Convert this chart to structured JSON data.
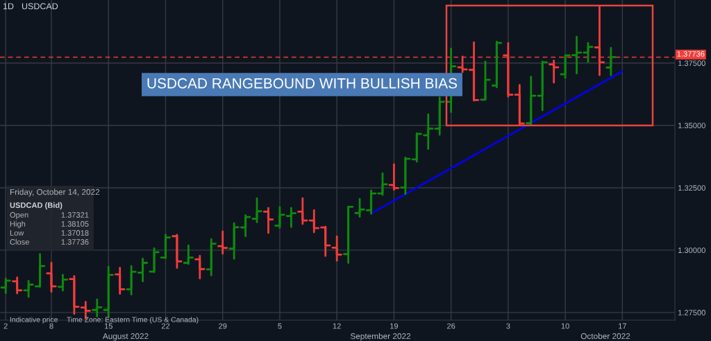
{
  "chart_data": {
    "type": "candlestick",
    "categories": [
      "2",
      null,
      null,
      null,
      "8",
      null,
      null,
      null,
      null,
      "15",
      null,
      null,
      null,
      null,
      "22",
      null,
      null,
      null,
      null,
      "29",
      null,
      null,
      null,
      null,
      "5",
      null,
      null,
      null,
      null,
      "12",
      null,
      null,
      null,
      null,
      "19",
      null,
      null,
      null,
      null,
      "26",
      null,
      null,
      null,
      null,
      "3",
      null,
      null,
      null,
      null,
      "10",
      null,
      null,
      null,
      null,
      "17",
      null,
      null,
      null,
      null
    ],
    "ohlc": [
      [
        1.285,
        1.2886,
        1.2828,
        1.2878
      ],
      [
        1.2875,
        1.289,
        1.2827,
        1.2839
      ],
      [
        1.2839,
        1.2876,
        1.2813,
        1.2862
      ],
      [
        1.2855,
        1.2984,
        1.2853,
        1.2936
      ],
      [
        1.2907,
        1.2949,
        1.2833,
        1.2855
      ],
      [
        1.2853,
        1.2901,
        1.2838,
        1.2882
      ],
      [
        1.2884,
        1.2896,
        1.2745,
        1.2773
      ],
      [
        1.277,
        1.2792,
        1.2725,
        1.2757
      ],
      [
        1.276,
        1.2802,
        1.2734,
        1.2771
      ],
      [
        1.276,
        1.2933,
        1.2734,
        1.2901
      ],
      [
        1.2903,
        1.2929,
        1.2825,
        1.2843
      ],
      [
        1.2843,
        1.2936,
        1.2822,
        1.2913
      ],
      [
        1.291,
        1.2966,
        1.2875,
        1.2949
      ],
      [
        1.2914,
        1.3007,
        1.2912,
        1.2992
      ],
      [
        1.297,
        1.3061,
        1.2968,
        1.3051
      ],
      [
        1.3056,
        1.3061,
        1.2929,
        1.2955
      ],
      [
        1.2949,
        1.3019,
        1.2945,
        1.297
      ],
      [
        1.2963,
        1.2977,
        1.2887,
        1.2924
      ],
      [
        1.2923,
        1.3044,
        1.2899,
        1.3026
      ],
      [
        1.3016,
        1.3075,
        1.2986,
        1.3009
      ],
      [
        1.3006,
        1.3108,
        1.2966,
        1.3092
      ],
      [
        1.3091,
        1.314,
        1.3056,
        1.3133
      ],
      [
        1.3126,
        1.3208,
        1.3112,
        1.3156
      ],
      [
        1.3154,
        1.3169,
        1.3069,
        1.3123
      ],
      [
        1.3098,
        1.3172,
        1.309,
        1.3142
      ],
      [
        1.3137,
        1.3169,
        1.3093,
        1.3148
      ],
      [
        1.3154,
        1.3208,
        1.3105,
        1.3119
      ],
      [
        1.3119,
        1.316,
        1.3072,
        1.3088
      ],
      [
        1.3091,
        1.3094,
        1.2977,
        1.3019
      ],
      [
        1.301,
        1.3055,
        1.2958,
        1.2982
      ],
      [
        1.2984,
        1.3174,
        1.2949,
        1.3174
      ],
      [
        1.3149,
        1.3205,
        1.3134,
        1.3163
      ],
      [
        1.316,
        1.3239,
        1.3146,
        1.3227
      ],
      [
        1.3227,
        1.3308,
        1.3222,
        1.3264
      ],
      [
        1.3261,
        1.3344,
        1.3242,
        1.3249
      ],
      [
        1.3251,
        1.3371,
        1.3225,
        1.3366
      ],
      [
        1.3364,
        1.3468,
        1.3355,
        1.3466
      ],
      [
        1.3461,
        1.3544,
        1.3406,
        1.3487
      ],
      [
        1.3487,
        1.3612,
        1.3463,
        1.3595
      ],
      [
        1.3595,
        1.3808,
        1.3554,
        1.3737
      ],
      [
        1.3733,
        1.3776,
        1.3714,
        1.3725
      ],
      [
        1.3723,
        1.3833,
        1.36,
        1.3602
      ],
      [
        1.3603,
        1.3756,
        1.3603,
        1.3683
      ],
      [
        1.366,
        1.3836,
        1.3653,
        1.3831
      ],
      [
        1.3781,
        1.383,
        1.3616,
        1.3623
      ],
      [
        1.3623,
        1.3662,
        1.3503,
        1.3508
      ],
      [
        1.3509,
        1.3695,
        1.3503,
        1.3619
      ],
      [
        1.3619,
        1.3756,
        1.3561,
        1.3753
      ],
      [
        1.3745,
        1.376,
        1.3672,
        1.3733
      ],
      [
        1.3705,
        1.3781,
        1.3691,
        1.3781
      ],
      [
        1.3782,
        1.3855,
        1.3709,
        1.3792
      ],
      [
        1.3792,
        1.383,
        1.3755,
        1.3815
      ],
      [
        1.3813,
        1.3978,
        1.3702,
        1.3753
      ],
      [
        1.3732,
        1.3811,
        1.3702,
        1.3774
      ],
      null,
      null,
      null,
      null,
      null
    ],
    "colors": [
      "#0f8a0f",
      "#f23d3a",
      "#0f8a0f",
      "#0f8a0f",
      "#f23d3a",
      "#0f8a0f",
      "#f23d3a",
      "#f23d3a",
      "#0f8a0f",
      "#0f8a0f",
      "#f23d3a",
      "#0f8a0f",
      "#0f8a0f",
      "#0f8a0f",
      "#0f8a0f",
      "#f23d3a",
      "#0f8a0f",
      "#f23d3a",
      "#0f8a0f",
      "#f23d3a",
      "#0f8a0f",
      "#0f8a0f",
      "#0f8a0f",
      "#f23d3a",
      "#0f8a0f",
      "#0f8a0f",
      "#f23d3a",
      "#f23d3a",
      "#f23d3a",
      "#f23d3a",
      "#0f8a0f",
      "#0f8a0f",
      "#0f8a0f",
      "#0f8a0f",
      "#f23d3a",
      "#0f8a0f",
      "#0f8a0f",
      "#0f8a0f",
      "#0f8a0f",
      "#0f8a0f",
      "#f23d3a",
      "#f23d3a",
      "#0f8a0f",
      "#0f8a0f",
      "#f23d3a",
      "#f23d3a",
      "#0f8a0f",
      "#0f8a0f",
      "#f23d3a",
      "#0f8a0f",
      "#0f8a0f",
      "#0f8a0f",
      "#f23d3a",
      "#0f8a0f",
      null,
      null,
      null,
      null,
      null
    ],
    "series": [
      {
        "type": "line",
        "color": "#0000ff",
        "values": [
          null,
          null,
          null,
          null,
          null,
          null,
          null,
          null,
          null,
          null,
          null,
          null,
          null,
          null,
          null,
          null,
          null,
          null,
          null,
          null,
          null,
          null,
          null,
          null,
          null,
          null,
          null,
          null,
          null,
          null,
          null,
          null,
          1.3147,
          null,
          null,
          null,
          null,
          null,
          null,
          null,
          null,
          null,
          null,
          null,
          null,
          null,
          null,
          null,
          null,
          null,
          null,
          null,
          null,
          null,
          1.3717,
          null,
          null,
          null,
          null
        ]
      }
    ],
    "ylim": [
      1.2719,
      1.4003
    ],
    "yticks": [
      {
        "value": 1.275,
        "label": "1.27500"
      },
      {
        "value": 1.3,
        "label": "1.30000"
      },
      {
        "value": 1.325,
        "label": "1.32500"
      },
      {
        "value": 1.35,
        "label": "1.35000"
      },
      {
        "value": 1.375,
        "label": "1.37500"
      }
    ],
    "grid": true,
    "ref_lines": [
      {
        "axis": "y",
        "value": 1.37736,
        "label": "1.37736",
        "color": "#f23d3a",
        "line_style": "dashed"
      }
    ],
    "annotations": [
      "1D",
      "USDCAD",
      "USDCAD RANGEBOUND WITH BULLISH BIAS",
      "Friday, October 14, 2022",
      "USDCAD (Bid)",
      "Open",
      "1.37321",
      "High",
      "1.38105",
      "Low",
      "1.37018",
      "Close",
      "1.37736",
      "Indicative price",
      "Time Zone: Eastern Time (US & Canada)",
      "August 2022",
      "September 2022",
      "October 2022"
    ]
  }
}
